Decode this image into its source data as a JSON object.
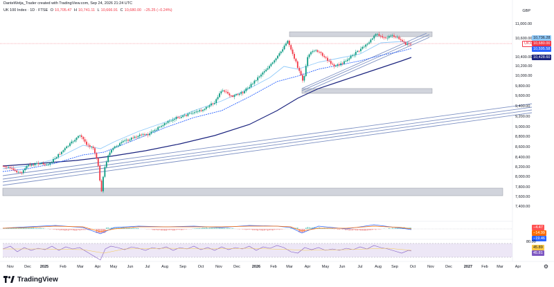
{
  "header": {
    "credit": "DanteWetja_Trader created with TradingView.com, Sep 24, 2026 21:24 UTC"
  },
  "symbol": {
    "name": "UK 100 Index · 1D · FTSE",
    "o_label": "O",
    "o_value": "10,705.47",
    "h_label": "H",
    "h_value": "10,741.11",
    "l_label": "L",
    "l_value": "10,666.91",
    "c_label": "C",
    "c_value": "10,680.00",
    "change": "−25.25 (−0.24%)"
  },
  "currency": "GBP",
  "price_axis": [
    "11,000.00",
    "10,600.00",
    "10,400.00",
    "10,200.00",
    "10,000.00",
    "9,800.00",
    "9,600.00",
    "9,400.00",
    "9,200.00",
    "9,000.00",
    "8,800.00",
    "8,600.00",
    "8,400.00",
    "8,200.00",
    "8,000.00",
    "7,800.00",
    "7,600.00",
    "7,400.00"
  ],
  "price_tags": {
    "ma_fast": "10,736.28",
    "symbol_code": "UKX",
    "last": "10,680.00",
    "ma_mid": "10,595.58",
    "ma_slow": "10,428.60"
  },
  "macd_tags": [
    "−4.47",
    "−14.99",
    "−19.46"
  ],
  "rsi_tags": [
    "80.00",
    "45.89",
    "45.81"
  ],
  "time_axis": [
    "Nov",
    "Dec",
    "2025",
    "Feb",
    "Mar",
    "Apr",
    "May",
    "Jun",
    "Jul",
    "Aug",
    "Sep",
    "Oct",
    "Nov",
    "Dec",
    "2026",
    "Feb",
    "Mar",
    "Apr",
    "May",
    "Jun",
    "Jul",
    "Aug",
    "Sep",
    "Oct",
    "Nov",
    "Dec",
    "2027",
    "Feb",
    "Mar",
    "Apr"
  ],
  "brand": "TradingView",
  "colors": {
    "up": "#089981",
    "down": "#f23645",
    "ma_slow": "#1a237e",
    "ma_mid": "#2962ff",
    "ma_fast": "#90caf9",
    "zone": "#b2b5be",
    "trend": "#7b8fc2",
    "rsi_band": "#e9e3f7",
    "rsi_line": "#7e57c2"
  },
  "icons": {
    "settings": "gear-icon",
    "logo": "tradingview-logo-icon"
  }
}
